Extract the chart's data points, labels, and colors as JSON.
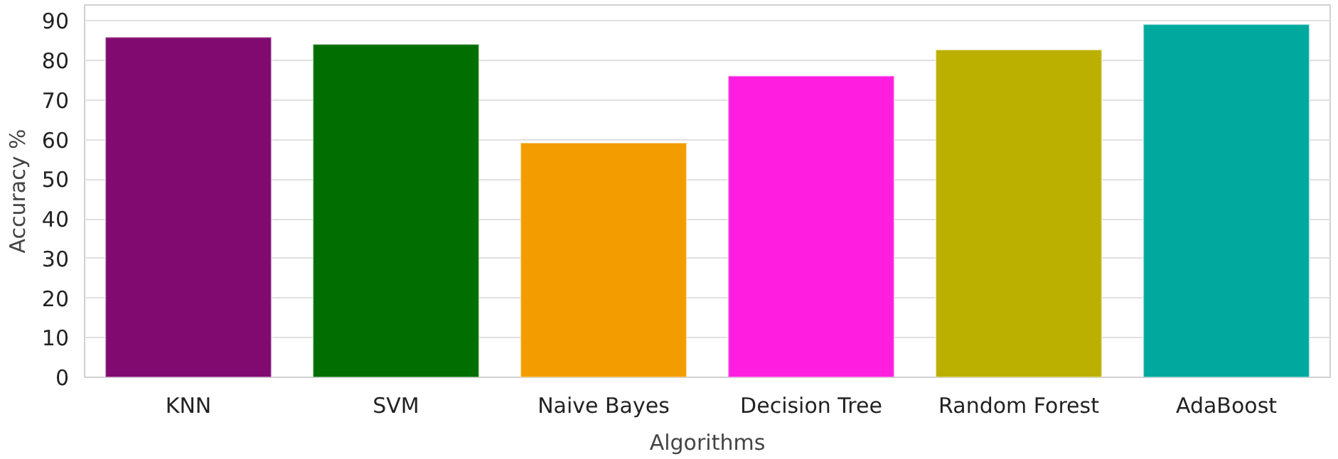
{
  "chart_data": {
    "type": "bar",
    "xlabel": "Algorithms",
    "ylabel": "Accuracy %",
    "categories": [
      "KNN",
      "SVM",
      "Naive Bayes",
      "Decision Tree",
      "Random Forest",
      "AdaBoost"
    ],
    "values": [
      85.9,
      84.1,
      59.2,
      76.1,
      82.7,
      89.1
    ],
    "colors": [
      "#800a70",
      "#006e00",
      "#f39c00",
      "#ff1ee0",
      "#bbb000",
      "#00a89e"
    ],
    "ylim": [
      0,
      94
    ],
    "yticks": [
      0,
      10,
      20,
      30,
      40,
      50,
      60,
      70,
      80,
      90
    ],
    "grid": "y"
  }
}
